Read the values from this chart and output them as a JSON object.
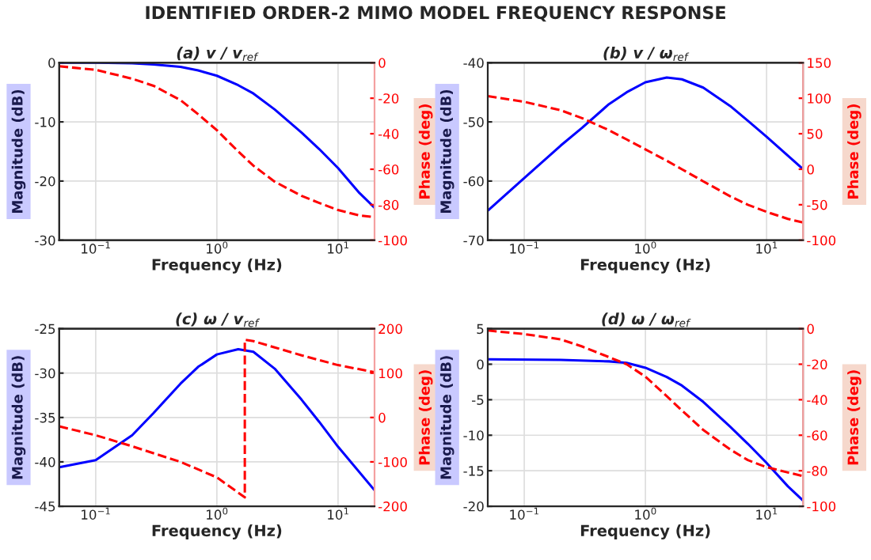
{
  "chart_data": [
    {
      "type": "line",
      "title": "(a) v / v$_{ref}$",
      "annotations": [
        "IDENTIFIED ORDER-2 MIMO MODEL FREQUENCY RESPONSE"
      ],
      "xlabel": "Frequency (Hz)",
      "ylabel": "Magnitude (dB)",
      "y2label": "Phase (deg)",
      "log": "x",
      "grid": true,
      "xlim": [
        0.05,
        20
      ],
      "xticks": [
        {
          "value": 0.1,
          "label": "10$^{−1}$"
        },
        {
          "value": 1,
          "label": "10$^{0}$"
        },
        {
          "value": 10,
          "label": "10$^{1}$"
        }
      ],
      "ylim": [
        -30,
        0
      ],
      "yticks": [
        -30,
        -20,
        -10,
        0
      ],
      "y2lim": [
        -100,
        0
      ],
      "y2ticks": [
        -100,
        -80,
        -60,
        -40,
        -20,
        0
      ],
      "series": [
        {
          "color": "#0000ff",
          "line_style": "solid",
          "x": [
            0.05,
            0.1,
            0.2,
            0.3,
            0.5,
            0.7,
            1,
            1.5,
            2,
            3,
            5,
            7,
            10,
            15,
            20
          ],
          "values": [
            0,
            0,
            -0.1,
            -0.3,
            -0.7,
            -1.3,
            -2.2,
            -3.8,
            -5.2,
            -7.9,
            -11.8,
            -14.6,
            -17.8,
            -22,
            -24.5
          ]
        },
        {
          "color": "#ff0000",
          "line_style": "dashed",
          "axis": "y2",
          "x": [
            0.05,
            0.1,
            0.2,
            0.3,
            0.5,
            0.7,
            1,
            1.5,
            2,
            3,
            5,
            7,
            10,
            15,
            20
          ],
          "values": [
            -2,
            -4,
            -9,
            -13,
            -21,
            -29,
            -38,
            -50,
            -58,
            -67,
            -75,
            -79,
            -83,
            -86,
            -87
          ]
        }
      ]
    },
    {
      "type": "line",
      "title": "(b) v / ω$_{ref}$",
      "xlabel": "Frequency (Hz)",
      "ylabel": "Magnitude (dB)",
      "y2label": "Phase (deg)",
      "log": "x",
      "grid": true,
      "xlim": [
        0.05,
        20
      ],
      "xticks": [
        {
          "value": 0.1,
          "label": "10$^{−1}$"
        },
        {
          "value": 1,
          "label": "10$^{0}$"
        },
        {
          "value": 10,
          "label": "10$^{1}$"
        }
      ],
      "ylim": [
        -70,
        -40
      ],
      "yticks": [
        -70,
        -60,
        -50,
        -40
      ],
      "y2lim": [
        -100,
        150
      ],
      "y2ticks": [
        -100,
        -50,
        0,
        50,
        100,
        150
      ],
      "series": [
        {
          "color": "#0000ff",
          "line_style": "solid",
          "x": [
            0.05,
            0.1,
            0.2,
            0.3,
            0.5,
            0.7,
            1,
            1.5,
            2,
            3,
            5,
            7,
            10,
            20
          ],
          "values": [
            -65,
            -59.5,
            -54,
            -51,
            -47,
            -45,
            -43.3,
            -42.5,
            -42.8,
            -44.2,
            -47.3,
            -49.8,
            -52.5,
            -58
          ]
        },
        {
          "color": "#ff0000",
          "line_style": "dashed",
          "axis": "y2",
          "x": [
            0.05,
            0.1,
            0.2,
            0.3,
            0.5,
            0.7,
            1,
            1.5,
            2,
            3,
            5,
            7,
            10,
            15,
            20
          ],
          "values": [
            103,
            95,
            83,
            72,
            55,
            42,
            28,
            12,
            0,
            -17,
            -38,
            -50,
            -60,
            -70,
            -75
          ]
        }
      ]
    },
    {
      "type": "line",
      "title": "(c) ω / v$_{ref}$",
      "xlabel": "Frequency (Hz)",
      "ylabel": "Magnitude (dB)",
      "y2label": "Phase (deg)",
      "log": "x",
      "grid": true,
      "xlim": [
        0.05,
        20
      ],
      "xticks": [
        {
          "value": 0.1,
          "label": "10$^{−1}$"
        },
        {
          "value": 1,
          "label": "10$^{0}$"
        },
        {
          "value": 10,
          "label": "10$^{1}$"
        }
      ],
      "ylim": [
        -45,
        -25
      ],
      "yticks": [
        -45,
        -40,
        -35,
        -30,
        -25
      ],
      "y2lim": [
        -200,
        200
      ],
      "y2ticks": [
        -200,
        -100,
        0,
        100,
        200
      ],
      "series": [
        {
          "color": "#0000ff",
          "line_style": "solid",
          "x": [
            0.05,
            0.1,
            0.2,
            0.3,
            0.5,
            0.7,
            1,
            1.5,
            2,
            3,
            5,
            7,
            10,
            20
          ],
          "values": [
            -40.6,
            -39.8,
            -37,
            -34.5,
            -31.2,
            -29.3,
            -27.9,
            -27.3,
            -27.6,
            -29.5,
            -33,
            -35.5,
            -38.3,
            -43.2
          ]
        },
        {
          "color": "#ff0000",
          "line_style": "dashed",
          "axis": "y2",
          "x": [
            0.05,
            0.1,
            0.2,
            0.5,
            1,
            1.7,
            1.7,
            2,
            3,
            5,
            10,
            20
          ],
          "values": [
            -20,
            -40,
            -65,
            -100,
            -135,
            -180,
            175,
            172,
            158,
            140,
            118,
            102
          ]
        }
      ]
    },
    {
      "type": "line",
      "title": "(d) ω / ω$_{ref}$",
      "xlabel": "Frequency (Hz)",
      "ylabel": "Magnitude (dB)",
      "y2label": "Phase (deg)",
      "log": "x",
      "grid": true,
      "xlim": [
        0.05,
        20
      ],
      "xticks": [
        {
          "value": 0.1,
          "label": "10$^{−1}$"
        },
        {
          "value": 1,
          "label": "10$^{0}$"
        },
        {
          "value": 10,
          "label": "10$^{1}$"
        }
      ],
      "ylim": [
        -20,
        5
      ],
      "yticks": [
        -20,
        -15,
        -10,
        -5,
        0,
        5
      ],
      "y2lim": [
        -100,
        0
      ],
      "y2ticks": [
        -100,
        -80,
        -60,
        -40,
        -20,
        0
      ],
      "series": [
        {
          "color": "#0000ff",
          "line_style": "solid",
          "x": [
            0.05,
            0.2,
            0.5,
            0.7,
            1,
            1.5,
            2,
            3,
            5,
            7,
            10,
            15,
            20
          ],
          "values": [
            0.7,
            0.6,
            0.4,
            0.2,
            -0.5,
            -1.8,
            -3,
            -5.3,
            -8.8,
            -11.2,
            -13.9,
            -17.2,
            -19.2
          ]
        },
        {
          "color": "#ff0000",
          "line_style": "dashed",
          "axis": "y2",
          "x": [
            0.05,
            0.1,
            0.2,
            0.3,
            0.5,
            0.7,
            1,
            1.5,
            2,
            3,
            5,
            7,
            10,
            15,
            20
          ],
          "values": [
            -1,
            -3,
            -6,
            -10,
            -16,
            -20,
            -27,
            -38,
            -46,
            -57,
            -68,
            -74,
            -78,
            -81,
            -83
          ]
        }
      ]
    }
  ]
}
